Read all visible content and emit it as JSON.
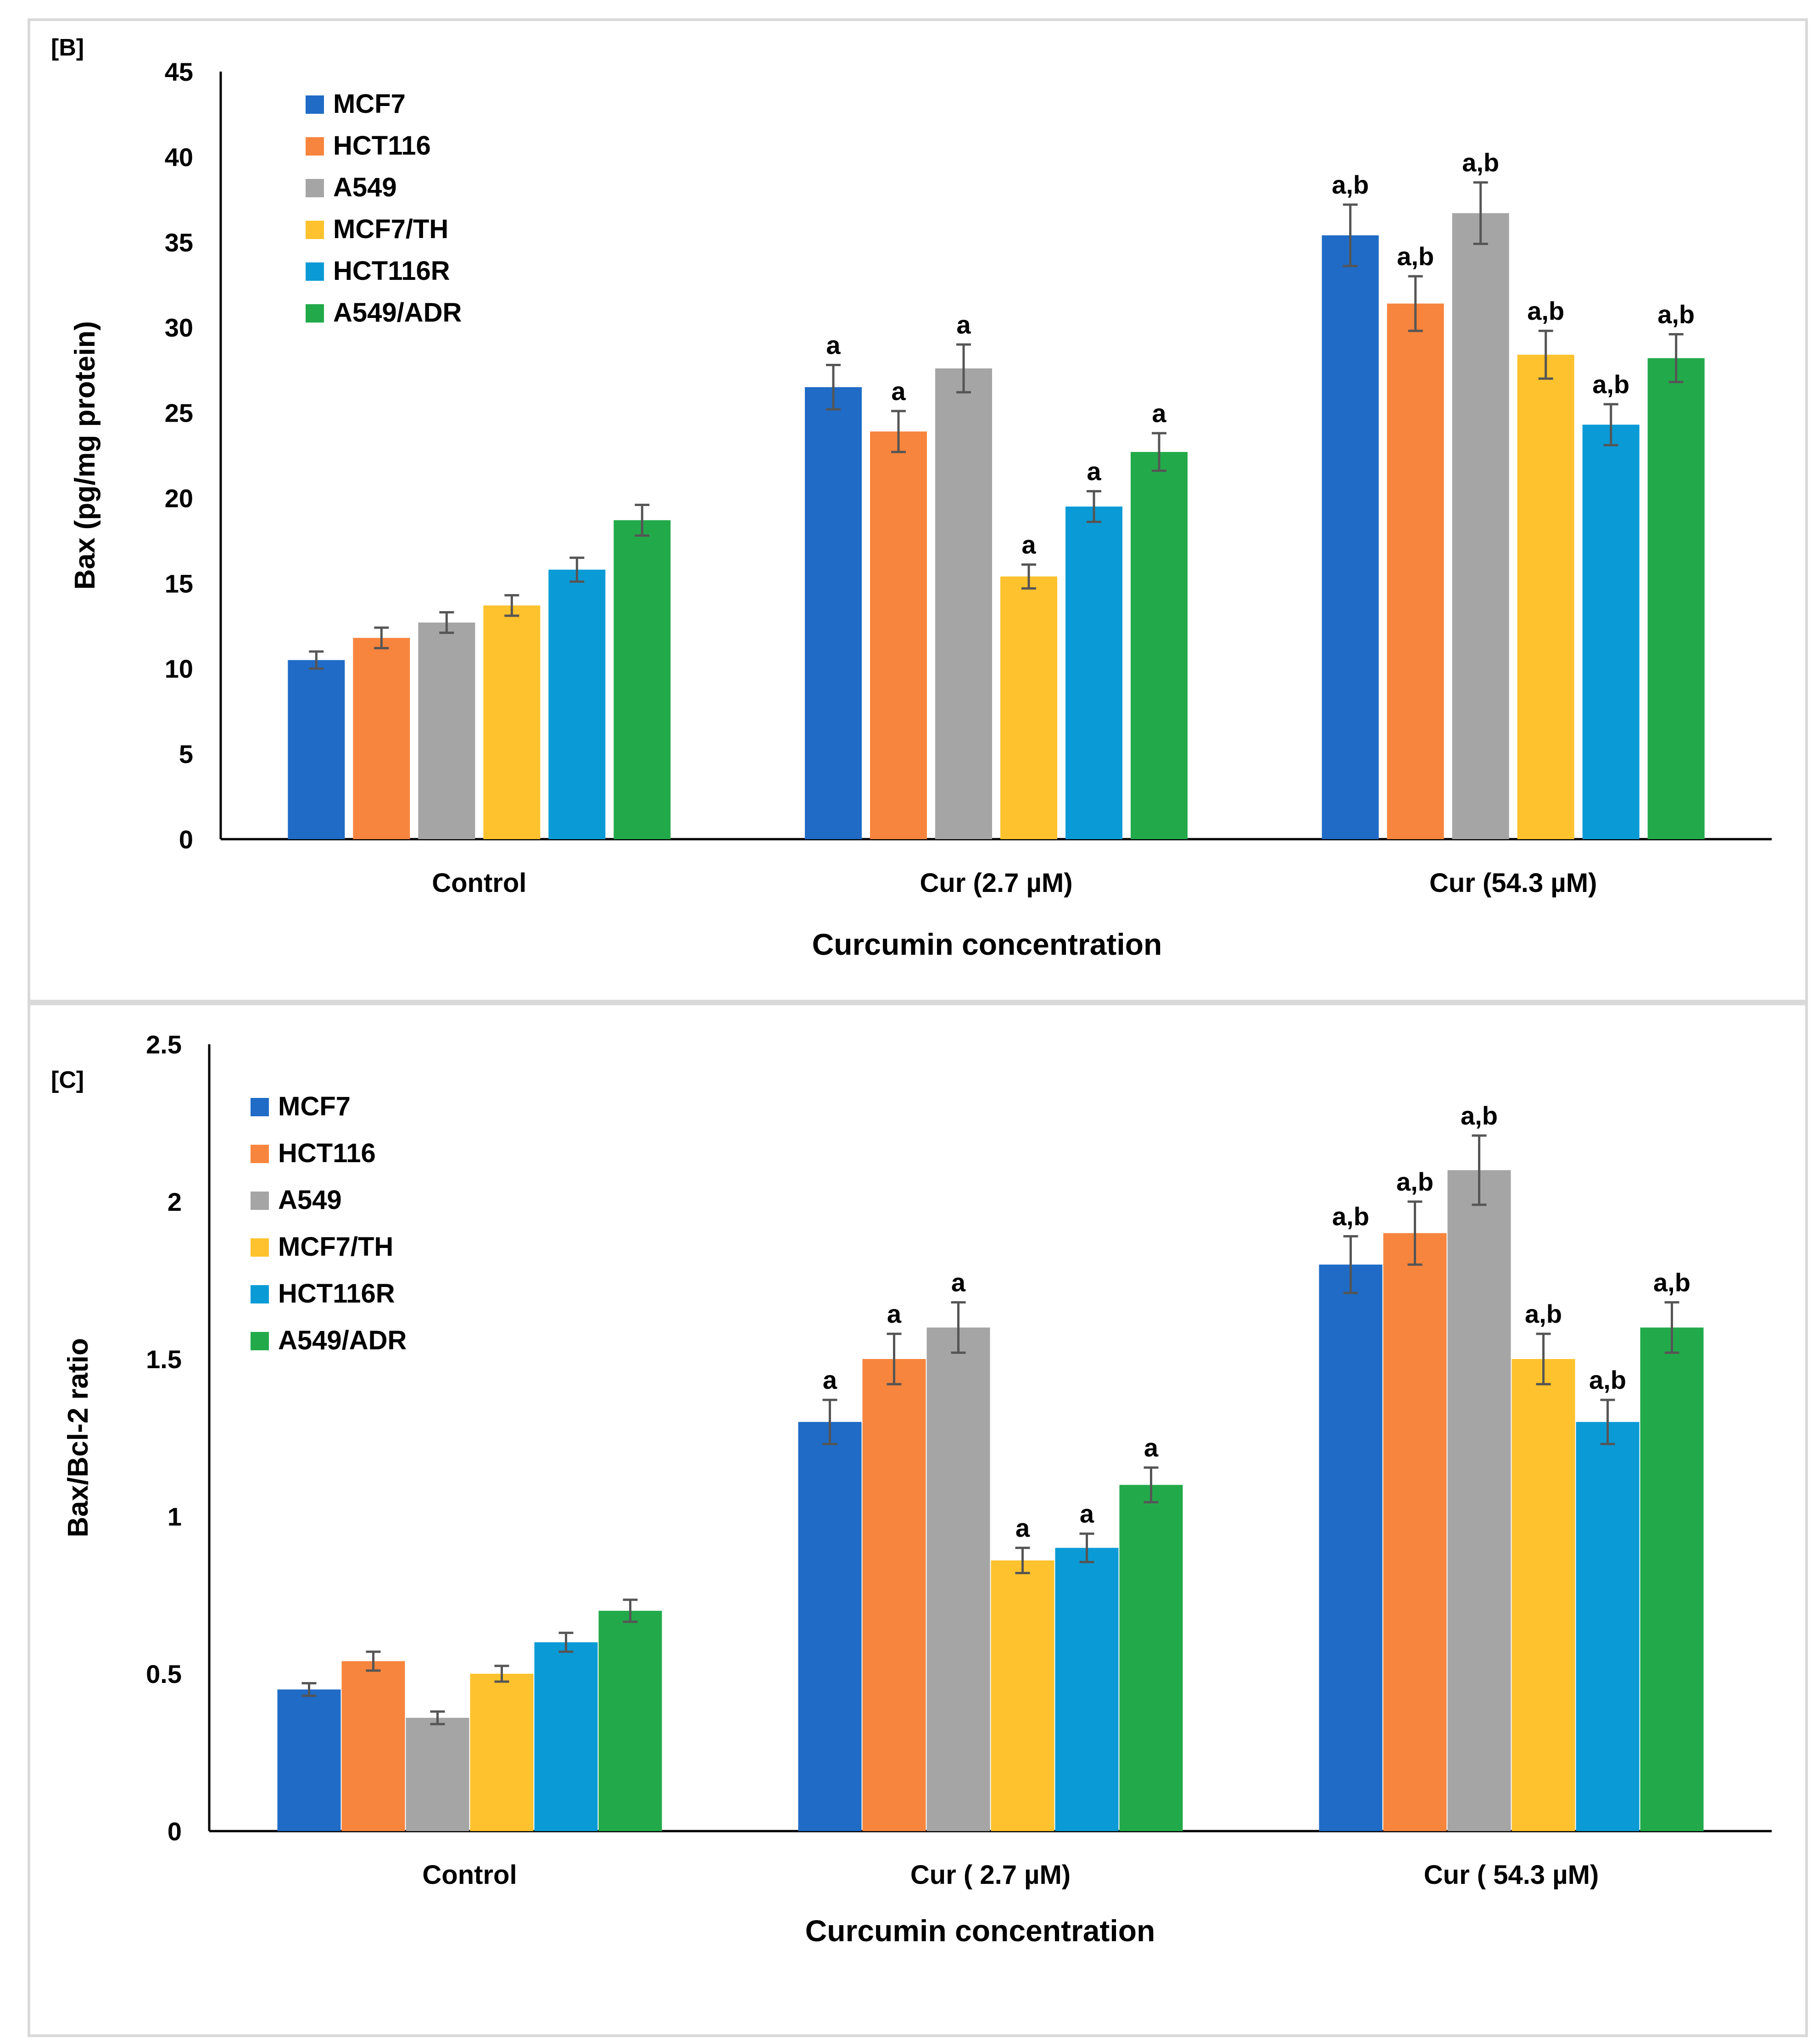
{
  "chart_data": [
    {
      "panel_label": "[B]",
      "type": "bar",
      "title": "",
      "xlabel": "Curcumin concentration",
      "ylabel": "Bax (pg/mg protein)",
      "ylim": [
        0,
        45
      ],
      "yticks": [
        0,
        5,
        10,
        15,
        20,
        25,
        30,
        35,
        40,
        45
      ],
      "categories": [
        "Control",
        "Cur (2.7  µM)",
        "Cur (54.3 µM)"
      ],
      "legend_position": "top-left",
      "series": [
        {
          "name": "MCF7",
          "color": "#1f6bc6",
          "values": [
            10.5,
            26.5,
            35.4
          ],
          "errors": [
            0.5,
            1.3,
            1.8
          ],
          "labels": [
            "",
            "a",
            "a,b"
          ]
        },
        {
          "name": "HCT116",
          "color": "#f7853d",
          "values": [
            11.8,
            23.9,
            31.4
          ],
          "errors": [
            0.6,
            1.2,
            1.6
          ],
          "labels": [
            "",
            "a",
            "a,b"
          ]
        },
        {
          "name": "A549",
          "color": "#a5a5a5",
          "values": [
            12.7,
            27.6,
            36.7
          ],
          "errors": [
            0.6,
            1.4,
            1.8
          ],
          "labels": [
            "",
            "a",
            "a,b"
          ]
        },
        {
          "name": "MCF7/TH",
          "color": "#fdc22d",
          "values": [
            13.7,
            15.4,
            28.4
          ],
          "errors": [
            0.6,
            0.7,
            1.4
          ],
          "labels": [
            "",
            "a",
            "a,b"
          ]
        },
        {
          "name": "HCT116R",
          "color": "#0a9bd6",
          "values": [
            15.8,
            19.5,
            24.3
          ],
          "errors": [
            0.7,
            0.9,
            1.2
          ],
          "labels": [
            "",
            "a",
            "a,b"
          ]
        },
        {
          "name": "A549/ADR",
          "color": "#22aa4a",
          "values": [
            18.7,
            22.7,
            28.2
          ],
          "errors": [
            0.9,
            1.1,
            1.4
          ],
          "labels": [
            "",
            "a",
            "a,b"
          ]
        }
      ]
    },
    {
      "panel_label": "[C]",
      "type": "bar",
      "title": "",
      "xlabel": "Curcumin concentration",
      "ylabel": "Bax/Bcl-2 ratio",
      "ylim": [
        0,
        2.5
      ],
      "yticks": [
        0,
        0.5,
        1,
        1.5,
        2,
        2.5
      ],
      "categories": [
        "Control",
        "Cur ( 2.7  µM)",
        "Cur ( 54.3 µM)"
      ],
      "legend_position": "top-left",
      "series": [
        {
          "name": "MCF7",
          "color": "#1f6bc6",
          "values": [
            0.45,
            1.3,
            1.8
          ],
          "errors": [
            0.02,
            0.07,
            0.09
          ],
          "labels": [
            "",
            "a",
            "a,b"
          ]
        },
        {
          "name": "HCT116",
          "color": "#f7853d",
          "values": [
            0.54,
            1.5,
            1.9
          ],
          "errors": [
            0.03,
            0.08,
            0.1
          ],
          "labels": [
            "",
            "a",
            "a,b"
          ]
        },
        {
          "name": "A549",
          "color": "#a5a5a5",
          "values": [
            0.36,
            1.6,
            2.1
          ],
          "errors": [
            0.02,
            0.08,
            0.11
          ],
          "labels": [
            "",
            "a",
            "a,b"
          ]
        },
        {
          "name": "MCF7/TH",
          "color": "#fdc22d",
          "values": [
            0.5,
            0.86,
            1.5
          ],
          "errors": [
            0.025,
            0.04,
            0.08
          ],
          "labels": [
            "",
            "a",
            "a,b"
          ]
        },
        {
          "name": "HCT116R",
          "color": "#0a9bd6",
          "values": [
            0.6,
            0.9,
            1.3
          ],
          "errors": [
            0.03,
            0.045,
            0.07
          ],
          "labels": [
            "",
            "a",
            "a,b"
          ]
        },
        {
          "name": "A549/ADR",
          "color": "#22aa4a",
          "values": [
            0.7,
            1.1,
            1.6
          ],
          "errors": [
            0.035,
            0.055,
            0.08
          ],
          "labels": [
            "",
            "a",
            "a,b"
          ]
        }
      ]
    }
  ]
}
